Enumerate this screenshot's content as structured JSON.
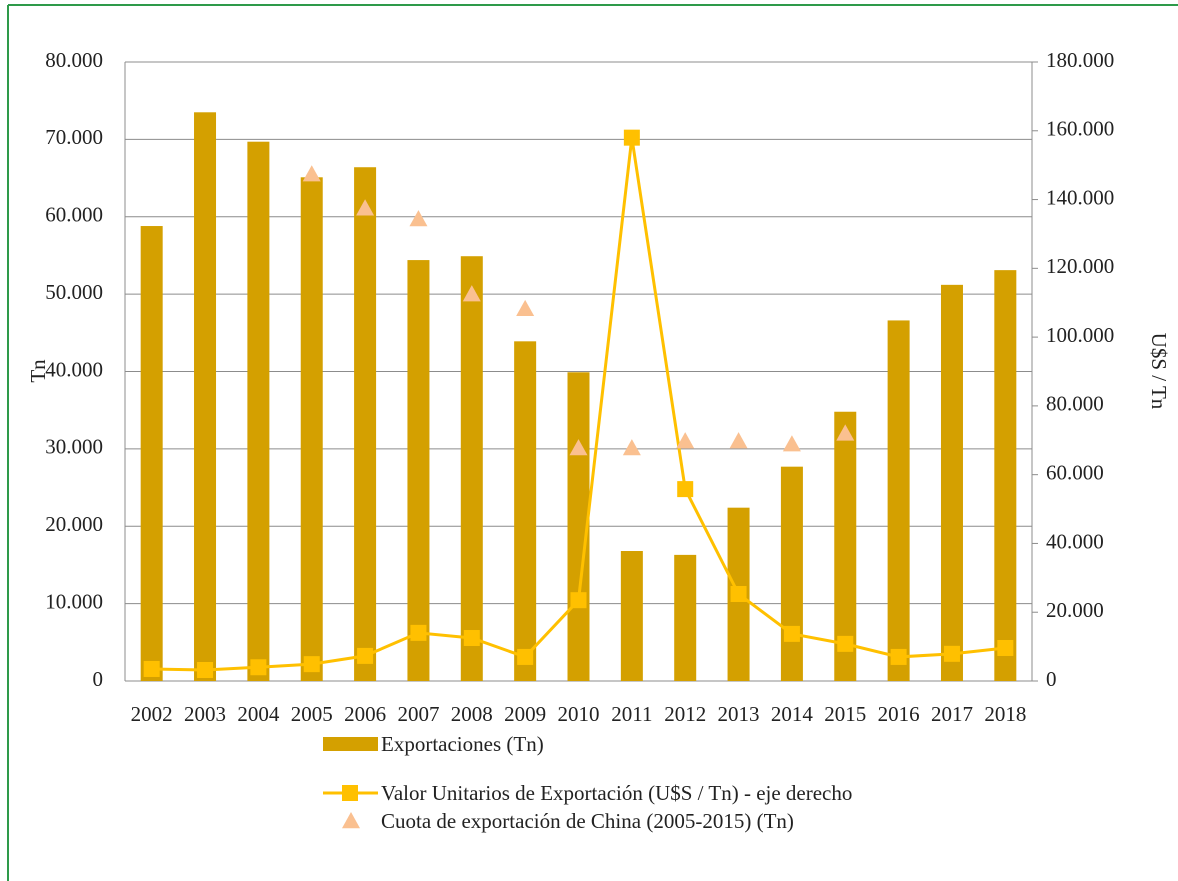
{
  "chart_data": {
    "type": "bar",
    "categories": [
      "2002",
      "2003",
      "2004",
      "2005",
      "2006",
      "2007",
      "2008",
      "2009",
      "2010",
      "2011",
      "2012",
      "2013",
      "2014",
      "2015",
      "2016",
      "2017",
      "2018"
    ],
    "series": [
      {
        "name": "Exportaciones (Tn)",
        "type": "bar",
        "color": "#d4a000",
        "values": [
          58800,
          73500,
          69700,
          65100,
          66400,
          54400,
          54900,
          43900,
          39900,
          16800,
          16300,
          22400,
          27700,
          34800,
          46600,
          51200,
          53100
        ]
      },
      {
        "name": "Valor Unitarios de Exportación (U$S / Tn) - eje derecho",
        "type": "line",
        "axis": "y2",
        "color": "#ffc000",
        "values": [
          3500,
          3200,
          4000,
          4900,
          7300,
          14000,
          12500,
          7000,
          23500,
          158000,
          55800,
          25300,
          13700,
          10800,
          7000,
          7900,
          9600
        ]
      },
      {
        "name": "Cuota de exportación de China (2005-2015) (Tn)",
        "type": "scatter",
        "color": "#fac090",
        "values": [
          null,
          null,
          null,
          65500,
          61100,
          59700,
          50000,
          48100,
          30100,
          30100,
          31000,
          31000,
          30600,
          32000,
          null,
          null,
          null
        ]
      }
    ],
    "ylabel": "Tn",
    "y2label": "U$S / Tn",
    "ylim": [
      0,
      80000
    ],
    "yticks": [
      0,
      {
        "value": 10000,
        "label": "10.000"
      },
      {
        "value": 20000,
        "label": "20.000"
      },
      {
        "value": 30000,
        "label": "30.000"
      },
      {
        "value": 40000,
        "label": "40.000"
      },
      {
        "value": 50000,
        "label": "50.000"
      },
      {
        "value": 60000,
        "label": "60.000"
      },
      {
        "value": 70000,
        "label": "70.000"
      },
      {
        "value": 80000,
        "label": "80.000"
      }
    ],
    "y2lim": [
      0,
      180000
    ],
    "y2ticks": [
      0,
      {
        "value": 20000,
        "label": "20.000"
      },
      {
        "value": 40000,
        "label": "40.000"
      },
      {
        "value": 60000,
        "label": "60.000"
      },
      {
        "value": 80000,
        "label": "80.000"
      },
      {
        "value": 100000,
        "label": "100.000"
      },
      {
        "value": 120000,
        "label": "120.000"
      },
      {
        "value": 140000,
        "label": "140.000"
      },
      {
        "value": 160000,
        "label": "160.000"
      },
      {
        "value": 180000,
        "label": "180.000"
      }
    ],
    "grid": true,
    "legend": "bottom"
  }
}
